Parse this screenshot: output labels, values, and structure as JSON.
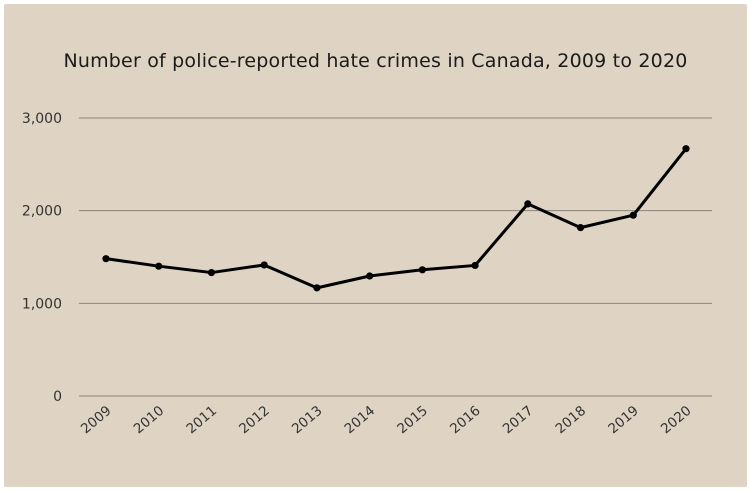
{
  "chart_data": {
    "type": "line",
    "title": "Number of police-reported hate crimes in Canada, 2009 to 2020",
    "xlabel": "",
    "ylabel": "",
    "x": [
      "2009",
      "2010",
      "2011",
      "2012",
      "2013",
      "2014",
      "2015",
      "2016",
      "2017",
      "2018",
      "2019",
      "2020"
    ],
    "series": [
      {
        "values": [
          1482,
          1401,
          1332,
          1414,
          1167,
          1295,
          1362,
          1409,
          2073,
          1817,
          1951,
          2669
        ]
      }
    ],
    "ylim": [
      0,
      3000
    ],
    "yticks": [
      0,
      1000,
      2000,
      3000
    ],
    "ytick_labels": [
      "0",
      "1,000",
      "2,000",
      "3,000"
    ],
    "grid": "horizontal",
    "colors": {
      "background": "#dfd3c3",
      "line": "#000000",
      "grid": "#8c8479"
    }
  }
}
